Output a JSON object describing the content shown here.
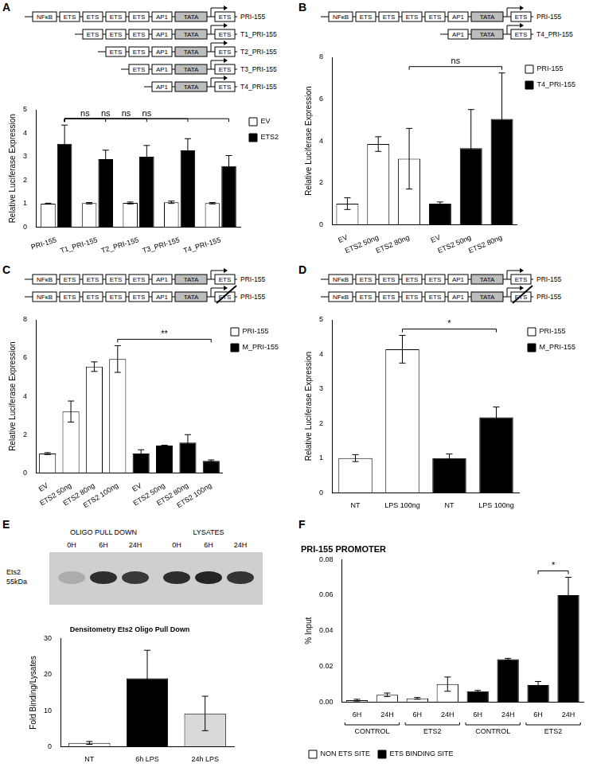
{
  "panels": [
    {
      "letter": "A",
      "constructs": [
        {
          "name": "PRI-155",
          "elements": [
            "NFκB",
            "ETS",
            "ETS",
            "ETS",
            "ETS",
            "AP1",
            "TATA",
            "ETS"
          ]
        },
        {
          "name": "T1_PRI-155",
          "elements": [
            "ETS",
            "ETS",
            "ETS",
            "AP1",
            "TATA",
            "ETS"
          ]
        },
        {
          "name": "T2_PRI-155",
          "elements": [
            "ETS",
            "ETS",
            "AP1",
            "TATA",
            "ETS"
          ]
        },
        {
          "name": "T3_PRI-155",
          "elements": [
            "ETS",
            "AP1",
            "TATA",
            "ETS"
          ]
        },
        {
          "name": "T4_PRI-155",
          "elements": [
            "AP1",
            "TATA",
            "ETS"
          ]
        }
      ]
    },
    {
      "letter": "B",
      "constructs": [
        {
          "name": "PRI-155",
          "elements": [
            "NFκB",
            "ETS",
            "ETS",
            "ETS",
            "ETS",
            "AP1",
            "TATA",
            "ETS"
          ]
        },
        {
          "name": "T4_PRI-155",
          "elements": [
            "AP1",
            "TATA",
            "ETS"
          ]
        }
      ]
    },
    {
      "letter": "C",
      "constructs": [
        {
          "name": "PRI-155",
          "elements": [
            "NFκB",
            "ETS",
            "ETS",
            "ETS",
            "ETS",
            "AP1",
            "TATA",
            "ETS"
          ]
        },
        {
          "name": "PRI-155",
          "elements": [
            "NFκB",
            "ETS",
            "ETS",
            "ETS",
            "ETS",
            "AP1",
            "TATA",
            "ETS"
          ],
          "mutated": 7
        }
      ]
    },
    {
      "letter": "D",
      "constructs": [
        {
          "name": "PRI-155",
          "elements": [
            "NFκB",
            "ETS",
            "ETS",
            "ETS",
            "ETS",
            "AP1",
            "TATA",
            "ETS"
          ]
        },
        {
          "name": "PRI-155",
          "elements": [
            "NFκB",
            "ETS",
            "ETS",
            "ETS",
            "ETS",
            "AP1",
            "TATA",
            "ETS"
          ],
          "mutated": 7
        }
      ]
    },
    {
      "letter": "E",
      "blot": {
        "groups": [
          "OLIGO PULL DOWN",
          "LYSATES"
        ],
        "lanes": [
          "0H",
          "6H",
          "24H"
        ],
        "protein": "Ets2",
        "size": "55kDa"
      }
    },
    {
      "letter": "F"
    }
  ],
  "chart_data": [
    {
      "type": "bar",
      "categories": [
        "PRI-155",
        "T1_PRI-155",
        "T2_PRI-155",
        "T3_PRI-155",
        "T4_PRI-155"
      ],
      "series": [
        {
          "name": "EV",
          "color": "#ffffff",
          "values": [
            1.0,
            1.02,
            1.03,
            1.06,
            1.02
          ],
          "errors": [
            0.02,
            0.03,
            0.04,
            0.05,
            0.03
          ]
        },
        {
          "name": "ETS2",
          "color": "#000000",
          "values": [
            3.55,
            2.9,
            3.0,
            3.27,
            2.6
          ],
          "errors": [
            0.8,
            0.38,
            0.48,
            0.5,
            0.45
          ]
        }
      ],
      "y_label": "Relative Luciferase Expression",
      "ylim": [
        0,
        5
      ],
      "yticks": [
        0,
        1,
        2,
        3,
        4,
        5
      ],
      "grid": false,
      "legend": "right",
      "annotations": [
        {
          "text": "ns",
          "from": {
            "series": 1,
            "index": 0
          },
          "to": {
            "series": 1,
            "index": 1
          }
        },
        {
          "text": "ns",
          "from": {
            "series": 1,
            "index": 0
          },
          "to": {
            "series": 1,
            "index": 2
          }
        },
        {
          "text": "ns",
          "from": {
            "series": 1,
            "index": 0
          },
          "to": {
            "series": 1,
            "index": 3
          }
        },
        {
          "text": "ns",
          "from": {
            "series": 1,
            "index": 0
          },
          "to": {
            "series": 1,
            "index": 4
          }
        }
      ]
    },
    {
      "type": "bar",
      "categories": [
        "EV",
        "ETS2 50ng",
        "ETS2 80ng",
        "EV",
        "ETS2 50ng",
        "ETS2 80ng"
      ],
      "series": [
        {
          "name": "PRI-155",
          "color": "#ffffff",
          "values": [
            1.0,
            3.85,
            3.15,
            null,
            null,
            null
          ],
          "errors": [
            0.28,
            0.35,
            1.45,
            null,
            null,
            null
          ]
        },
        {
          "name": "T4_PRI-155",
          "color": "#000000",
          "values": [
            null,
            null,
            null,
            1.0,
            3.65,
            5.05
          ],
          "errors": [
            null,
            null,
            null,
            0.08,
            1.85,
            2.2
          ]
        }
      ],
      "y_label": "Relative Luciferase Expression",
      "ylim": [
        0,
        8
      ],
      "yticks": [
        0,
        2,
        4,
        6,
        8
      ],
      "grid": false,
      "legend": "right",
      "annotations": [
        {
          "text": "ns",
          "from": {
            "series": 0,
            "index": 2
          },
          "to": {
            "series": 1,
            "index": 5
          }
        }
      ]
    },
    {
      "type": "bar",
      "categories": [
        "EV",
        "ETS2 50ng",
        "ETS2 80ng",
        "ETS2 100ng",
        "EV",
        "ETS2 50ng",
        "ETS2 80ng",
        "ETS2 100ng"
      ],
      "series": [
        {
          "name": "PRI-155",
          "color": "#ffffff",
          "values": [
            1.0,
            3.2,
            5.55,
            5.95,
            null,
            null,
            null,
            null
          ],
          "errors": [
            0.05,
            0.55,
            0.25,
            0.7,
            null,
            null,
            null,
            null
          ]
        },
        {
          "name": "M_PRI-155",
          "color": "#000000",
          "values": [
            null,
            null,
            null,
            null,
            1.0,
            1.42,
            1.57,
            0.62
          ],
          "errors": [
            null,
            null,
            null,
            null,
            0.2,
            0.02,
            0.42,
            0.05
          ]
        }
      ],
      "y_label": "Relative Luciferase Expression",
      "ylim": [
        0,
        8
      ],
      "yticks": [
        0,
        2,
        4,
        6,
        8
      ],
      "grid": false,
      "legend": "right",
      "annotations": [
        {
          "text": "**",
          "from": {
            "series": 0,
            "index": 3
          },
          "to": {
            "series": 1,
            "index": 7
          }
        }
      ]
    },
    {
      "type": "bar",
      "categories": [
        "NT",
        "LPS 100ng",
        "NT",
        "LPS 100ng"
      ],
      "series": [
        {
          "name": "PRI-155",
          "color": "#ffffff",
          "values": [
            1.0,
            4.15,
            null,
            null
          ],
          "errors": [
            0.1,
            0.4,
            null,
            null
          ]
        },
        {
          "name": "M_PRI-155",
          "color": "#000000",
          "values": [
            null,
            null,
            1.0,
            2.18
          ],
          "errors": [
            null,
            null,
            0.12,
            0.3
          ]
        }
      ],
      "y_label": "Relative Luciferase Expression",
      "ylim": [
        0,
        5
      ],
      "yticks": [
        0,
        1,
        2,
        3,
        4,
        5
      ],
      "grid": false,
      "legend": "right",
      "annotations": [
        {
          "text": "*",
          "from": {
            "series": 0,
            "index": 1
          },
          "to": {
            "series": 1,
            "index": 3
          }
        }
      ]
    },
    {
      "type": "bar",
      "title": "Densitometry Ets2 Oligo Pull Down",
      "categories": [
        "NT",
        "6h LPS",
        "24h LPS"
      ],
      "values": [
        1,
        19,
        9.2
      ],
      "errors": [
        0.4,
        7.8,
        4.8
      ],
      "colors": [
        "#ffffff",
        "#000000",
        "#d9d9d9"
      ],
      "y_label": "Fold Binding/Lysates",
      "ylim": [
        0,
        30
      ],
      "yticks": [
        0,
        10,
        20,
        30
      ],
      "grid": false
    },
    {
      "type": "bar",
      "title": "PRI-155 PROMOTER",
      "categories": [
        "6H",
        "24H",
        "6H",
        "24H",
        "6H",
        "24H",
        "6H",
        "24H"
      ],
      "groups": [
        {
          "label": "CONTROL",
          "from": 0,
          "to": 1
        },
        {
          "label": "ETS2",
          "from": 2,
          "to": 3
        },
        {
          "label": "CONTROL",
          "from": 4,
          "to": 5
        },
        {
          "label": "ETS2",
          "from": 6,
          "to": 7
        }
      ],
      "series": [
        {
          "name": "NON ETS SITE",
          "color": "#ffffff",
          "values": [
            0.001,
            0.004,
            0.002,
            0.01,
            null,
            null,
            null,
            null
          ],
          "errors": [
            0.0005,
            0.001,
            0.0005,
            0.004,
            null,
            null,
            null,
            null
          ]
        },
        {
          "name": "ETS BINDING SITE",
          "color": "#000000",
          "values": [
            null,
            null,
            null,
            null,
            0.006,
            0.024,
            0.0095,
            0.06
          ],
          "errors": [
            null,
            null,
            null,
            null,
            0.0005,
            0.0005,
            0.002,
            0.01
          ]
        }
      ],
      "y_label": "% Input",
      "ylim": [
        0,
        0.08
      ],
      "yticks": [
        {
          "value": 0,
          "label": "0.00"
        },
        0.02,
        0.04,
        0.06,
        0.08
      ],
      "grid": false,
      "legend": "bottom",
      "annotations": [
        {
          "text": "*",
          "from": {
            "series": 1,
            "index": 6
          },
          "to": {
            "series": 1,
            "index": 7
          }
        }
      ]
    }
  ]
}
